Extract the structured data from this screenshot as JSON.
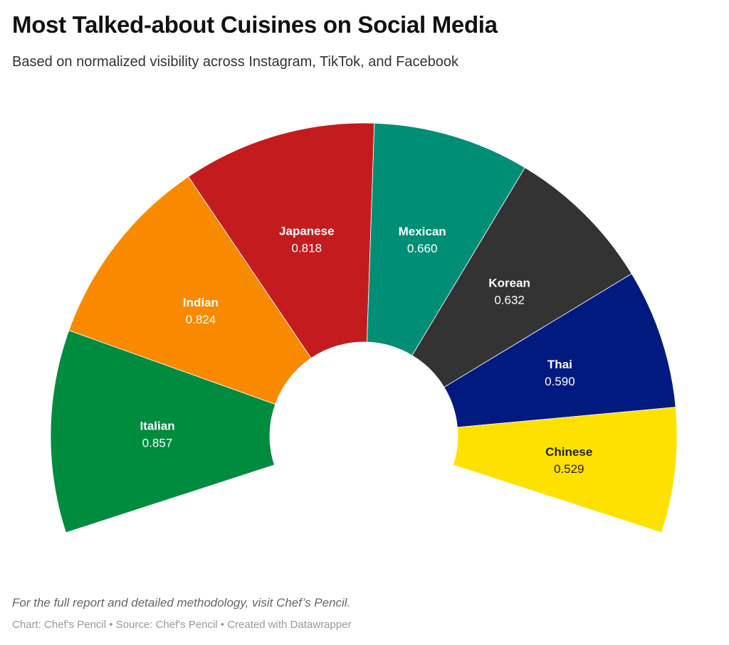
{
  "header": {
    "title": "Most Talked-about Cuisines on Social Media",
    "subtitle": "Based on normalized visibility across Instagram, TikTok, and Facebook"
  },
  "footer": {
    "note": "For the full report and detailed methodology, visit Chef’s Pencil.",
    "credit": "Chart: Chef's Pencil • Source: Chef's Pencil • Created with Datawrapper"
  },
  "chart_data": {
    "type": "pie",
    "variant": "semi-donut",
    "title": "Most Talked-about Cuisines on Social Media",
    "categories": [
      "Italian",
      "Indian",
      "Japanese",
      "Mexican",
      "Korean",
      "Thai",
      "Chinese"
    ],
    "values": [
      0.857,
      0.824,
      0.818,
      0.66,
      0.632,
      0.59,
      0.529
    ],
    "value_labels": [
      "0.857",
      "0.824",
      "0.818",
      "0.660",
      "0.632",
      "0.590",
      "0.529"
    ],
    "colors": [
      "#008c3f",
      "#f98a00",
      "#c41c1e",
      "#008f76",
      "#333333",
      "#001a80",
      "#ffe100"
    ],
    "label_colors": [
      "#ffffff",
      "#ffffff",
      "#ffffff",
      "#ffffff",
      "#ffffff",
      "#ffffff",
      "#222222"
    ]
  }
}
